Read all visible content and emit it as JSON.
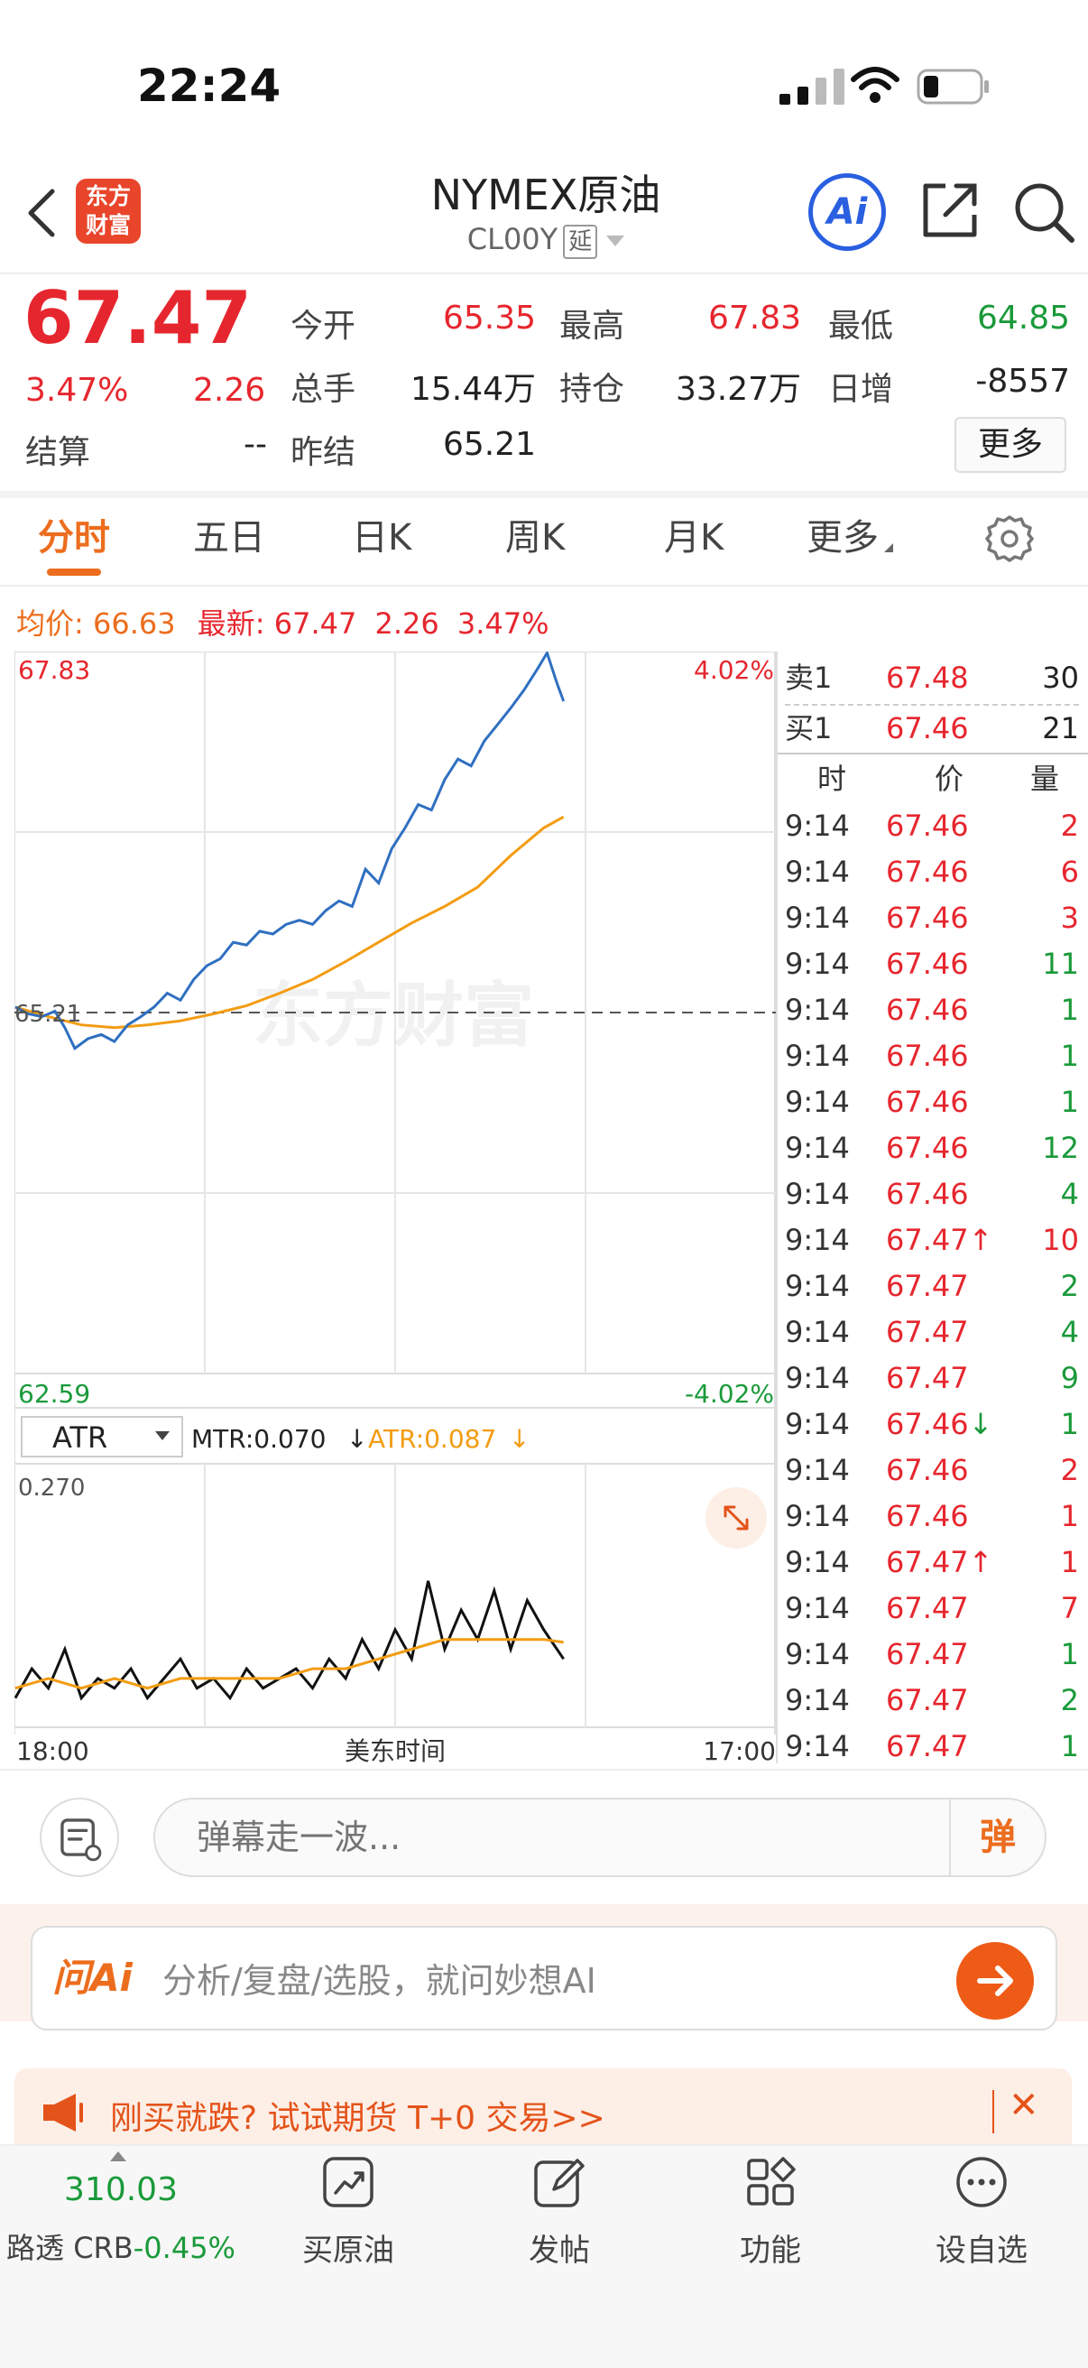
{
  "status_bar": {
    "time": "22:24"
  },
  "header": {
    "logo_line1": "东方",
    "logo_line2": "财富",
    "title": "NYMEX原油",
    "code": "CL00Y",
    "delay_badge": "延",
    "ai_label": "Ai"
  },
  "quote": {
    "price": "67.47",
    "change_pct": "3.47%",
    "change": "2.26",
    "fields": [
      {
        "label": "今开",
        "value": "65.35",
        "color": "#e6262e"
      },
      {
        "label": "最高",
        "value": "67.83",
        "color": "#e6262e"
      },
      {
        "label": "最低",
        "value": "64.85",
        "color": "#1a9a3a"
      },
      {
        "label": "总手",
        "value": "15.44万",
        "color": "#222222"
      },
      {
        "label": "持仓",
        "value": "33.27万",
        "color": "#222222"
      },
      {
        "label": "日增",
        "value": "-8557",
        "color": "#222222"
      },
      {
        "label": "结算",
        "value": "--",
        "color": "#222222"
      },
      {
        "label": "昨结",
        "value": "65.21",
        "color": "#222222"
      }
    ],
    "more_label": "更多"
  },
  "tabs": [
    "分时",
    "五日",
    "日K",
    "周K",
    "月K",
    "更多"
  ],
  "price_line": {
    "avg_label": "均价:",
    "avg_value": "66.63",
    "latest_label": "最新:",
    "latest_value": "67.47",
    "latest_change": "2.26",
    "latest_pct": "3.47%"
  },
  "chart_data": {
    "type": "line",
    "y_top_label": "67.83",
    "y_bottom_label": "62.59",
    "y_mid_label": "65.21",
    "pct_top_label": "4.02%",
    "pct_bottom_label": "-4.02%",
    "ylim": [
      62.59,
      67.83
    ],
    "xlim_hours": [
      18,
      41
    ],
    "x_start_label": "18:00",
    "x_mid_label": "美东时间",
    "x_end_label": "17:00",
    "watermark": "东方财富",
    "price_series": [
      [
        18.0,
        65.25
      ],
      [
        18.4,
        65.2
      ],
      [
        18.8,
        65.18
      ],
      [
        19.2,
        65.22
      ],
      [
        19.5,
        65.1
      ],
      [
        19.8,
        64.95
      ],
      [
        20.2,
        65.02
      ],
      [
        20.6,
        65.05
      ],
      [
        21.0,
        65.0
      ],
      [
        21.4,
        65.12
      ],
      [
        21.8,
        65.18
      ],
      [
        22.2,
        65.25
      ],
      [
        22.6,
        65.35
      ],
      [
        23.0,
        65.3
      ],
      [
        23.4,
        65.45
      ],
      [
        23.8,
        65.55
      ],
      [
        24.2,
        65.6
      ],
      [
        24.6,
        65.72
      ],
      [
        25.0,
        65.7
      ],
      [
        25.4,
        65.8
      ],
      [
        25.8,
        65.78
      ],
      [
        26.2,
        65.85
      ],
      [
        26.6,
        65.88
      ],
      [
        27.0,
        65.85
      ],
      [
        27.4,
        65.95
      ],
      [
        27.8,
        66.02
      ],
      [
        28.2,
        65.98
      ],
      [
        28.6,
        66.25
      ],
      [
        29.0,
        66.15
      ],
      [
        29.4,
        66.4
      ],
      [
        29.8,
        66.55
      ],
      [
        30.2,
        66.72
      ],
      [
        30.6,
        66.68
      ],
      [
        31.0,
        66.9
      ],
      [
        31.4,
        67.05
      ],
      [
        31.8,
        67.0
      ],
      [
        32.2,
        67.18
      ],
      [
        32.6,
        67.3
      ],
      [
        33.0,
        67.42
      ],
      [
        33.4,
        67.55
      ],
      [
        33.8,
        67.7
      ],
      [
        34.1,
        67.82
      ],
      [
        34.4,
        67.6
      ],
      [
        34.6,
        67.47
      ]
    ],
    "avg_series": [
      [
        18.0,
        65.25
      ],
      [
        19.0,
        65.18
      ],
      [
        20.0,
        65.12
      ],
      [
        21.0,
        65.1
      ],
      [
        22.0,
        65.12
      ],
      [
        23.0,
        65.15
      ],
      [
        24.0,
        65.2
      ],
      [
        25.0,
        65.26
      ],
      [
        26.0,
        65.35
      ],
      [
        27.0,
        65.45
      ],
      [
        28.0,
        65.58
      ],
      [
        29.0,
        65.72
      ],
      [
        30.0,
        65.86
      ],
      [
        31.0,
        65.98
      ],
      [
        32.0,
        66.12
      ],
      [
        33.0,
        66.35
      ],
      [
        34.0,
        66.55
      ],
      [
        34.6,
        66.63
      ]
    ],
    "indicator": {
      "name": "ATR",
      "mtr_label": "MTR:0.070",
      "atr_label": "ATR:0.087",
      "y_max_label": "0.270",
      "ylim": [
        0,
        0.27
      ],
      "mtr_series": [
        [
          18.0,
          0.03
        ],
        [
          18.5,
          0.06
        ],
        [
          19.0,
          0.04
        ],
        [
          19.5,
          0.08
        ],
        [
          20.0,
          0.03
        ],
        [
          20.5,
          0.05
        ],
        [
          21.0,
          0.04
        ],
        [
          21.5,
          0.06
        ],
        [
          22.0,
          0.03
        ],
        [
          22.5,
          0.05
        ],
        [
          23.0,
          0.07
        ],
        [
          23.5,
          0.04
        ],
        [
          24.0,
          0.05
        ],
        [
          24.5,
          0.03
        ],
        [
          25.0,
          0.06
        ],
        [
          25.5,
          0.04
        ],
        [
          26.0,
          0.05
        ],
        [
          26.5,
          0.06
        ],
        [
          27.0,
          0.04
        ],
        [
          27.5,
          0.07
        ],
        [
          28.0,
          0.05
        ],
        [
          28.5,
          0.09
        ],
        [
          29.0,
          0.06
        ],
        [
          29.5,
          0.1
        ],
        [
          30.0,
          0.07
        ],
        [
          30.5,
          0.15
        ],
        [
          31.0,
          0.08
        ],
        [
          31.5,
          0.12
        ],
        [
          32.0,
          0.09
        ],
        [
          32.5,
          0.14
        ],
        [
          33.0,
          0.08
        ],
        [
          33.5,
          0.13
        ],
        [
          34.0,
          0.1
        ],
        [
          34.6,
          0.07
        ]
      ],
      "atr_series": [
        [
          18.0,
          0.04
        ],
        [
          19.0,
          0.05
        ],
        [
          20.0,
          0.04
        ],
        [
          21.0,
          0.05
        ],
        [
          22.0,
          0.04
        ],
        [
          23.0,
          0.05
        ],
        [
          24.0,
          0.05
        ],
        [
          25.0,
          0.05
        ],
        [
          26.0,
          0.05
        ],
        [
          27.0,
          0.06
        ],
        [
          28.0,
          0.06
        ],
        [
          29.0,
          0.07
        ],
        [
          30.0,
          0.08
        ],
        [
          31.0,
          0.09
        ],
        [
          32.0,
          0.09
        ],
        [
          33.0,
          0.09
        ],
        [
          34.0,
          0.09
        ],
        [
          34.6,
          0.087
        ]
      ]
    }
  },
  "book": {
    "sell_label": "卖1",
    "sell_price": "67.48",
    "sell_vol": "30",
    "buy_label": "买1",
    "buy_price": "67.46",
    "buy_vol": "21",
    "col_time": "时",
    "col_price": "价",
    "col_vol": "量"
  },
  "trades": [
    {
      "time": "9:14",
      "price": "67.46",
      "vol": "2",
      "vc": "#e6262e"
    },
    {
      "time": "9:14",
      "price": "67.46",
      "vol": "6",
      "vc": "#e6262e"
    },
    {
      "time": "9:14",
      "price": "67.46",
      "vol": "3",
      "vc": "#e6262e"
    },
    {
      "time": "9:14",
      "price": "67.46",
      "vol": "11",
      "vc": "#1a9a3a"
    },
    {
      "time": "9:14",
      "price": "67.46",
      "vol": "1",
      "vc": "#1a9a3a"
    },
    {
      "time": "9:14",
      "price": "67.46",
      "vol": "1",
      "vc": "#1a9a3a"
    },
    {
      "time": "9:14",
      "price": "67.46",
      "vol": "1",
      "vc": "#1a9a3a"
    },
    {
      "time": "9:14",
      "price": "67.46",
      "vol": "12",
      "vc": "#1a9a3a"
    },
    {
      "time": "9:14",
      "price": "67.46",
      "vol": "4",
      "vc": "#1a9a3a"
    },
    {
      "time": "9:14",
      "price": "67.47",
      "arrow": "↑",
      "ac": "#e6262e",
      "vol": "10",
      "vc": "#e6262e"
    },
    {
      "time": "9:14",
      "price": "67.47",
      "vol": "2",
      "vc": "#1a9a3a"
    },
    {
      "time": "9:14",
      "price": "67.47",
      "vol": "4",
      "vc": "#1a9a3a"
    },
    {
      "time": "9:14",
      "price": "67.47",
      "vol": "9",
      "vc": "#1a9a3a"
    },
    {
      "time": "9:14",
      "price": "67.46",
      "arrow": "↓",
      "ac": "#1a9a3a",
      "vol": "1",
      "vc": "#1a9a3a"
    },
    {
      "time": "9:14",
      "price": "67.46",
      "vol": "2",
      "vc": "#e6262e"
    },
    {
      "time": "9:14",
      "price": "67.46",
      "vol": "1",
      "vc": "#e6262e"
    },
    {
      "time": "9:14",
      "price": "67.47",
      "arrow": "↑",
      "ac": "#e6262e",
      "vol": "1",
      "vc": "#e6262e"
    },
    {
      "time": "9:14",
      "price": "67.47",
      "vol": "7",
      "vc": "#e6262e"
    },
    {
      "time": "9:14",
      "price": "67.47",
      "vol": "1",
      "vc": "#1a9a3a"
    },
    {
      "time": "9:14",
      "price": "67.47",
      "vol": "2",
      "vc": "#1a9a3a"
    },
    {
      "time": "9:14",
      "price": "67.47",
      "vol": "1",
      "vc": "#1a9a3a"
    }
  ],
  "danmu": {
    "placeholder": "弹幕走一波...",
    "button": "弹"
  },
  "ai_ask": {
    "brand": "问Ai",
    "placeholder": "分析/复盘/选股，就问妙想AI"
  },
  "promo": {
    "text": "刚买就跌? 试试期货 T+0 交易>>",
    "close": "✕"
  },
  "tabbar": {
    "index_value": "310.03",
    "index_name": "路透 CRB",
    "index_pct": "-0.45%",
    "items": [
      "买原油",
      "发帖",
      "功能",
      "设自选"
    ]
  },
  "colors": {
    "up": "#e6262e",
    "down": "#1a9a3a",
    "accent": "#ec6d1d",
    "price_line": "#2f6fc1",
    "avg_line": "#f39c12"
  }
}
